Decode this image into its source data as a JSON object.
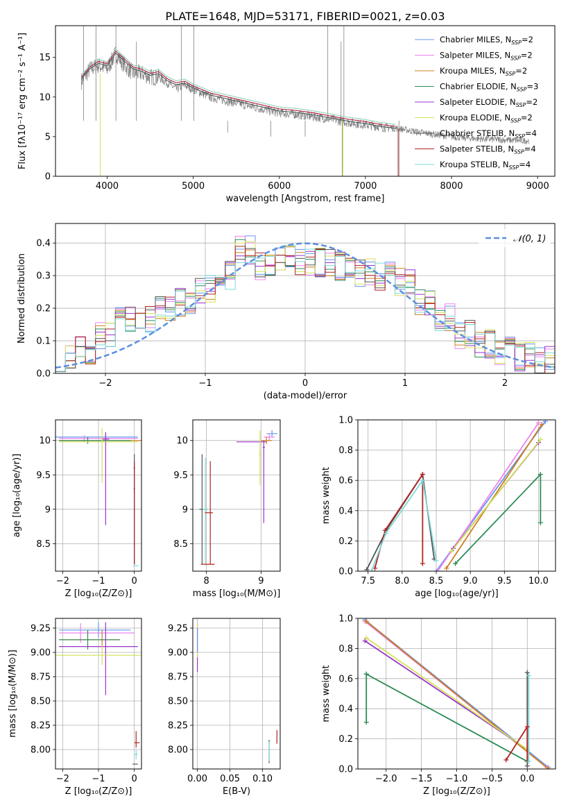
{
  "figure": {
    "title": "PLATE=1648, MJD=53171, FIBERID=0021, z=0.03"
  },
  "chart_data": [
    {
      "id": "spectrum",
      "type": "line",
      "xlabel": "wavelength [Angstrom, rest frame]",
      "ylabel": "Flux [fλ10⁻¹⁷ erg cm⁻² s⁻¹ A⁻¹]",
      "xlim": [
        3400,
        9200
      ],
      "ylim": [
        0,
        19
      ],
      "xticks": [
        4000,
        5000,
        6000,
        7000,
        8000,
        9000
      ],
      "yticks": [
        0,
        5,
        10,
        15
      ],
      "grid": false,
      "legend_position": "upper right",
      "data_series": {
        "name": "data",
        "color": "#808080",
        "x": [
          3700,
          3800,
          3900,
          4000,
          4100,
          4200,
          4300,
          4400,
          4500,
          4600,
          4700,
          4800,
          4900,
          5000,
          5200,
          5400,
          5600,
          5800,
          6000,
          6200,
          6400,
          6600,
          6800,
          7000,
          7200,
          7400,
          7600,
          7800,
          8000,
          8200,
          8400,
          8600,
          8800,
          8900
        ],
        "y": [
          12.0,
          13.5,
          14.0,
          13.5,
          15.5,
          14.0,
          13.0,
          13.0,
          12.5,
          12.5,
          11.8,
          11.0,
          11.5,
          11.0,
          10.0,
          9.5,
          9.0,
          8.5,
          8.0,
          7.8,
          7.5,
          7.2,
          6.8,
          6.5,
          6.2,
          6.0,
          5.6,
          5.3,
          5.0,
          4.8,
          4.7,
          4.6,
          4.5,
          4.5
        ]
      },
      "models": [
        {
          "name": "Chabrier MILES, N_SSP=2",
          "color": "#6495ed"
        },
        {
          "name": "Salpeter MILES, N_SSP=2",
          "color": "#ee82ee"
        },
        {
          "name": "Kroupa MILES, N_SSP=2",
          "color": "#cd7f1e"
        },
        {
          "name": "Chabrier ELODIE, N_SSP=3",
          "color": "#2e8b57"
        },
        {
          "name": "Salpeter ELODIE, N_SSP=2",
          "color": "#9932cc"
        },
        {
          "name": "Kroupa ELODIE, N_SSP=2",
          "color": "#d4e157"
        },
        {
          "name": "Chabrier STELIB, N_SSP=4",
          "color": "#555555"
        },
        {
          "name": "Salpeter STELIB, N_SSP=4",
          "color": "#b22222"
        },
        {
          "name": "Kroupa STELIB, N_SSP=4",
          "color": "#7fd8d8"
        }
      ],
      "model_curve": {
        "x": [
          3700,
          3800,
          3900,
          4000,
          4100,
          4200,
          4300,
          4400,
          4500,
          4600,
          4700,
          4800,
          4900,
          5000,
          5200,
          5400,
          5600,
          5800,
          6000,
          6200,
          6400,
          6600,
          6800,
          7000,
          7200,
          7350
        ],
        "y": [
          12.5,
          13.8,
          14.5,
          14.2,
          15.8,
          14.8,
          13.8,
          13.5,
          13.0,
          13.2,
          12.3,
          11.8,
          12.0,
          11.4,
          10.5,
          10.0,
          9.5,
          9.0,
          8.5,
          8.3,
          8.0,
          7.6,
          7.2,
          6.9,
          6.5,
          6.3
        ]
      },
      "legend_labels": [
        {
          "base": "Chabrier MILES, N",
          "sub": "SSP",
          "tail": "=2"
        },
        {
          "base": "Salpeter MILES, N",
          "sub": "SSP",
          "tail": "=2"
        },
        {
          "base": "Kroupa MILES, N",
          "sub": "SSP",
          "tail": "=2"
        },
        {
          "base": "Chabrier ELODIE, N",
          "sub": "SSP",
          "tail": "=3"
        },
        {
          "base": "Salpeter ELODIE, N",
          "sub": "SSP",
          "tail": "=2"
        },
        {
          "base": "Kroupa ELODIE, N",
          "sub": "SSP",
          "tail": "=2"
        },
        {
          "base": "Chabrier STELIB, N",
          "sub": "SSP",
          "tail": "=4"
        },
        {
          "base": "Salpeter STELIB, N",
          "sub": "SSP",
          "tail": "=4"
        },
        {
          "base": "Kroupa STELIB, N",
          "sub": "SSP",
          "tail": "=4"
        }
      ]
    },
    {
      "id": "residuals",
      "type": "line",
      "xlabel": "(data-model)/error",
      "ylabel": "Normed distribution",
      "xlim": [
        -2.5,
        2.5
      ],
      "ylim": [
        0,
        0.46
      ],
      "xticks": [
        -2,
        -1,
        0,
        1,
        2
      ],
      "yticks": [
        0.0,
        0.1,
        0.2,
        0.3,
        0.4
      ],
      "grid": true,
      "legend": "𝒩(0, 1)",
      "gaussian": {
        "mean": 0,
        "sigma": 1,
        "color": "#5b8ee0"
      },
      "histogram_bins": [
        -2.5,
        -2.3,
        -2.1,
        -1.9,
        -1.7,
        -1.5,
        -1.3,
        -1.1,
        -0.9,
        -0.7,
        -0.5,
        -0.3,
        -0.1,
        0.1,
        0.3,
        0.5,
        0.7,
        0.9,
        1.1,
        1.3,
        1.5,
        1.7,
        1.9,
        2.1,
        2.3,
        2.5
      ],
      "histogram_values": [
        0.05,
        0.07,
        0.12,
        0.16,
        0.17,
        0.2,
        0.22,
        0.26,
        0.3,
        0.38,
        0.33,
        0.35,
        0.34,
        0.34,
        0.33,
        0.31,
        0.3,
        0.28,
        0.22,
        0.17,
        0.12,
        0.09,
        0.07,
        0.05,
        0.04
      ]
    },
    {
      "id": "age_vs_Z",
      "type": "scatter",
      "xlabel": "Z [log₁₀(Z/Z⊙)]",
      "ylabel": "age  [log₁₀(age/yr)]",
      "xlim": [
        -2.2,
        0.2
      ],
      "ylim": [
        8.1,
        10.3
      ],
      "xticks": [
        -2,
        -1,
        0
      ],
      "yticks": [
        8.5,
        9.0,
        9.5,
        10.0
      ]
    },
    {
      "id": "age_vs_mass",
      "type": "scatter",
      "xlabel": "mass [log₁₀(M/M⊙)]",
      "ylabel": "",
      "xlim": [
        7.75,
        9.35
      ],
      "ylim": [
        8.1,
        10.3
      ],
      "xticks": [
        8,
        9
      ],
      "yticks": [
        8.5,
        9.0,
        9.5,
        10.0
      ]
    },
    {
      "id": "weight_vs_age",
      "type": "line",
      "xlabel": "age  [log₁₀(age/yr)]",
      "ylabel": "mass weight",
      "xlim": [
        7.35,
        10.25
      ],
      "ylim": [
        0,
        1.0
      ],
      "xticks": [
        7.5,
        8.0,
        8.5,
        9.0,
        9.5,
        10.0
      ],
      "yticks": [
        0.0,
        0.2,
        0.4,
        0.6,
        0.8,
        1.0
      ]
    },
    {
      "id": "mass_vs_Z",
      "type": "scatter",
      "xlabel": "Z [log₁₀(Z/Z⊙)]",
      "ylabel": "mass [log₁₀(M/M⊙)]",
      "xlim": [
        -2.2,
        0.2
      ],
      "ylim": [
        7.8,
        9.35
      ],
      "xticks": [
        -2,
        -1,
        0
      ],
      "yticks": [
        8.0,
        8.25,
        8.5,
        8.75,
        9.0,
        9.25
      ]
    },
    {
      "id": "mass_vs_ebv",
      "type": "scatter",
      "xlabel": "E(B-V)",
      "ylabel": "",
      "xlim": [
        -0.007,
        0.127
      ],
      "ylim": [
        7.8,
        9.35
      ],
      "xticks": [
        0.0,
        0.05,
        0.1
      ],
      "yticks": [
        8.0,
        8.25,
        8.5,
        8.75,
        9.0,
        9.25
      ]
    },
    {
      "id": "weight_vs_Z",
      "type": "line",
      "xlabel": "Z [log₁₀(Z/Z⊙)]",
      "ylabel": "mass weight",
      "xlim": [
        -2.4,
        0.4
      ],
      "ylim": [
        0,
        1.0
      ],
      "xticks": [
        -2.0,
        -1.5,
        -1.0,
        -0.5,
        0.0
      ],
      "yticks": [
        0.0,
        0.2,
        0.4,
        0.6,
        0.8,
        1.0
      ]
    }
  ]
}
